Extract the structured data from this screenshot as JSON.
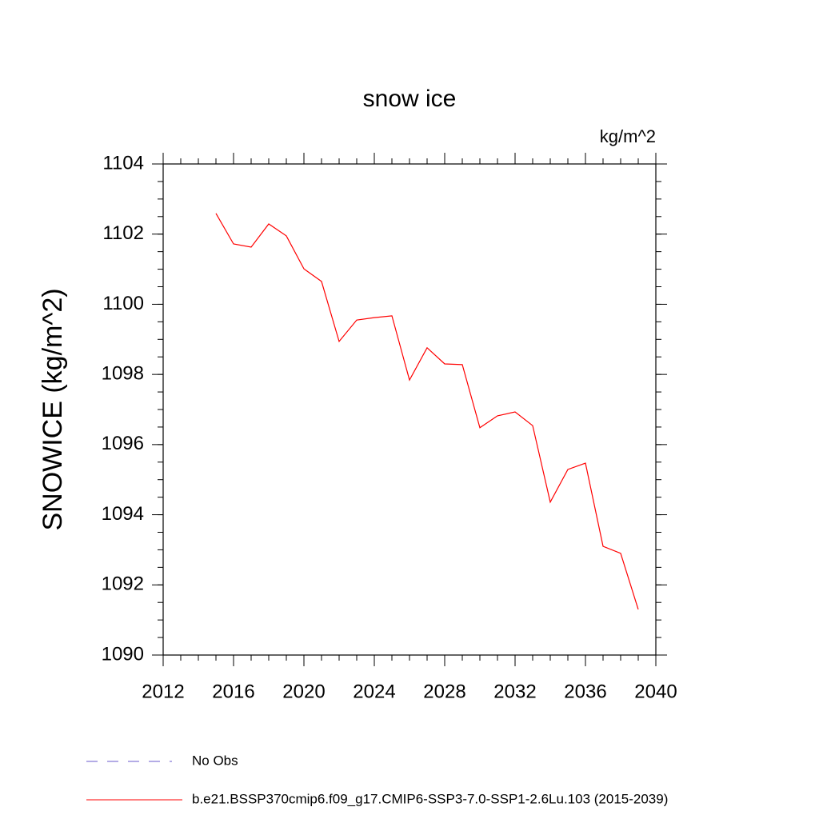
{
  "chart_data": {
    "type": "line",
    "title": "snow ice",
    "units_label": "kg/m^2",
    "y_label": "SNOWICE  (kg/m^2)",
    "x": [
      2015,
      2016,
      2017,
      2018,
      2019,
      2020,
      2021,
      2022,
      2023,
      2024,
      2025,
      2026,
      2027,
      2028,
      2029,
      2030,
      2031,
      2032,
      2033,
      2034,
      2035,
      2036,
      2037,
      2038,
      2039
    ],
    "series": [
      {
        "name": "No Obs",
        "color": "#6a5acd",
        "dashed": true,
        "values": [
          null,
          null,
          null,
          null,
          null,
          null,
          null,
          null,
          null,
          null,
          null,
          null,
          null,
          null,
          null,
          null,
          null,
          null,
          null,
          null,
          null,
          null,
          null,
          null,
          null
        ]
      },
      {
        "name": "b.e21.BSSP370cmip6.f09_g17.CMIP6-SSP3-7.0-SSP1-2.6Lu.103 (2015-2039)",
        "color": "#ff0000",
        "dashed": false,
        "values": [
          1102.59,
          1101.72,
          1101.63,
          1102.29,
          1101.95,
          1101.01,
          1100.65,
          1098.94,
          1099.55,
          1099.62,
          1099.67,
          1097.84,
          1098.76,
          1098.3,
          1098.28,
          1096.48,
          1096.82,
          1096.93,
          1096.54,
          1094.36,
          1095.29,
          1095.47,
          1093.1,
          1092.9,
          1091.3
        ]
      }
    ],
    "xlim": [
      2012,
      2040
    ],
    "xticks": [
      2012,
      2016,
      2020,
      2024,
      2028,
      2032,
      2036,
      2040
    ],
    "xminor_step": 1,
    "ylim": [
      1090,
      1104
    ],
    "yticks": [
      1090,
      1092,
      1094,
      1096,
      1098,
      1100,
      1102,
      1104
    ],
    "yminor_step": 0.5
  }
}
